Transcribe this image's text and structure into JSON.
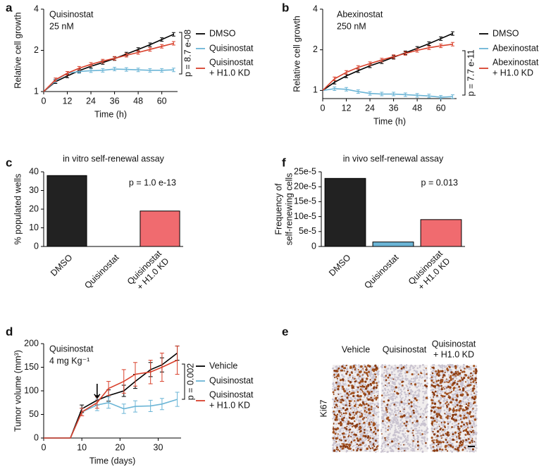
{
  "chart_data": [
    {
      "panel": "a",
      "type": "line",
      "annotations": [
        "Quisinostat",
        "25 nM"
      ],
      "p_value": "p = 8.7 e-08",
      "xlabel": "Time (h)",
      "ylabel": "Relative cell growth",
      "log_y": true,
      "x": [
        0,
        6,
        12,
        18,
        24,
        30,
        36,
        42,
        48,
        54,
        60,
        66
      ],
      "xlim": [
        0,
        68
      ],
      "xticks": [
        0,
        12,
        24,
        36,
        48,
        60
      ],
      "ylim": [
        1,
        4
      ],
      "yticks": [
        1,
        2,
        4
      ],
      "series": [
        {
          "name": "DMSO",
          "color": "#000000",
          "values": [
            1,
            1.18,
            1.3,
            1.42,
            1.53,
            1.63,
            1.74,
            1.88,
            2.03,
            2.2,
            2.4,
            2.62
          ]
        },
        {
          "name": "Quisinostat",
          "color": "#6bb5d6",
          "values": [
            1,
            1.2,
            1.36,
            1.4,
            1.42,
            1.43,
            1.46,
            1.45,
            1.44,
            1.43,
            1.43,
            1.44
          ]
        },
        {
          "name": "Quisinostat\n+ H1.0 KD",
          "color": "#d9402b",
          "values": [
            1,
            1.22,
            1.36,
            1.48,
            1.58,
            1.67,
            1.75,
            1.84,
            1.93,
            2.03,
            2.14,
            2.25
          ]
        }
      ]
    },
    {
      "panel": "b",
      "type": "line",
      "annotations": [
        "Abexinostat",
        "250 nM"
      ],
      "p_value": "p = 7.7 e-11",
      "xlabel": "Time (h)",
      "ylabel": "Relative cell growth",
      "log_y": true,
      "x": [
        0,
        6,
        12,
        18,
        24,
        30,
        36,
        42,
        48,
        54,
        60,
        66
      ],
      "xlim": [
        0,
        68
      ],
      "xticks": [
        0,
        12,
        24,
        36,
        48,
        60
      ],
      "ylim": [
        0.87,
        4
      ],
      "yticks": [
        1,
        2,
        4
      ],
      "series": [
        {
          "name": "DMSO",
          "color": "#000000",
          "values": [
            1,
            1.15,
            1.28,
            1.4,
            1.52,
            1.63,
            1.76,
            1.9,
            2.05,
            2.22,
            2.42,
            2.64
          ]
        },
        {
          "name": "Abexinostat",
          "color": "#6bb5d6",
          "values": [
            1,
            1.03,
            1.02,
            0.98,
            0.95,
            0.94,
            0.94,
            0.93,
            0.92,
            0.91,
            0.89,
            0.9
          ]
        },
        {
          "name": "Abexinostat\n+ H1.0 KD",
          "color": "#d9402b",
          "values": [
            1,
            1.22,
            1.36,
            1.48,
            1.58,
            1.68,
            1.78,
            1.88,
            1.98,
            2.07,
            2.14,
            2.2
          ]
        }
      ]
    },
    {
      "panel": "c",
      "type": "bar",
      "title": "in vitro self-renewal assay",
      "p_value": "p = 1.0 e-13",
      "ylabel": "% populated wells",
      "categories": [
        "DMSO",
        "Quisinostat",
        "Quisinostat\n+ H1.0 KD"
      ],
      "values": [
        38,
        0,
        19
      ],
      "colors": [
        "#222222",
        "#6bb5d6",
        "#f06b6f"
      ],
      "ylim": [
        0,
        40
      ],
      "yticks": [
        0,
        10,
        20,
        30,
        40
      ]
    },
    {
      "panel": "f",
      "type": "bar",
      "title": "in vivo self-renewal assay",
      "p_value": "p = 0.013",
      "ylabel": "Frequency of\nself-renewing cells",
      "categories": [
        "DMSO",
        "Quisinostat",
        "Quisinostat\n+ H1.0 KD"
      ],
      "values": [
        0.000228,
        1.5e-05,
        9e-05
      ],
      "colors": [
        "#222222",
        "#6bb5d6",
        "#f06b6f"
      ],
      "ylim": [
        0,
        0.00025
      ],
      "yticks": [
        0,
        {
          "value": 5e-05,
          "label": "5e-5"
        },
        {
          "value": 0.0001,
          "label": "10e-5"
        },
        {
          "value": 0.00015,
          "label": "15e-5"
        },
        {
          "value": 0.0002,
          "label": "20e-5"
        },
        {
          "value": 0.00025,
          "label": "25e-5"
        }
      ]
    },
    {
      "panel": "d",
      "type": "line",
      "annotations": [
        "Quisinostat",
        "4 mg Kg⁻¹"
      ],
      "p_value": "p = 0.002",
      "xlabel": "Time (days)",
      "ylabel": "Tumor volume (mm³)",
      "arrow_x": 14,
      "x": [
        0,
        7,
        10,
        14,
        17,
        21,
        24,
        28,
        31,
        35
      ],
      "xlim": [
        0,
        36
      ],
      "xticks": [
        0,
        10,
        20,
        30
      ],
      "ylim": [
        0,
        200
      ],
      "yticks": [
        0,
        50,
        100,
        150,
        200
      ],
      "series": [
        {
          "name": "Vehicle",
          "color": "#000000",
          "values": [
            0,
            0,
            62,
            80,
            90,
            100,
            120,
            145,
            155,
            180
          ],
          "errors": [
            0,
            0,
            8,
            10,
            12,
            12,
            15,
            15,
            15,
            15
          ]
        },
        {
          "name": "Quisinostat",
          "color": "#6bb5d6",
          "values": [
            0,
            0,
            55,
            70,
            75,
            62,
            67,
            68,
            72,
            82
          ],
          "errors": [
            0,
            0,
            8,
            12,
            12,
            10,
            12,
            12,
            12,
            15
          ]
        },
        {
          "name": "Quisinostat\n+ H1.0 KD",
          "color": "#d9402b",
          "values": [
            0,
            0,
            55,
            75,
            105,
            120,
            135,
            140,
            150,
            165
          ],
          "errors": [
            0,
            0,
            8,
            12,
            15,
            25,
            25,
            25,
            30,
            30
          ]
        }
      ]
    }
  ],
  "image_panel": {
    "panel": "e",
    "row_label": "Ki67",
    "columns": [
      "Vehicle",
      "Quisinostat",
      "Quisinostat\n+ H1.0 KD"
    ]
  }
}
